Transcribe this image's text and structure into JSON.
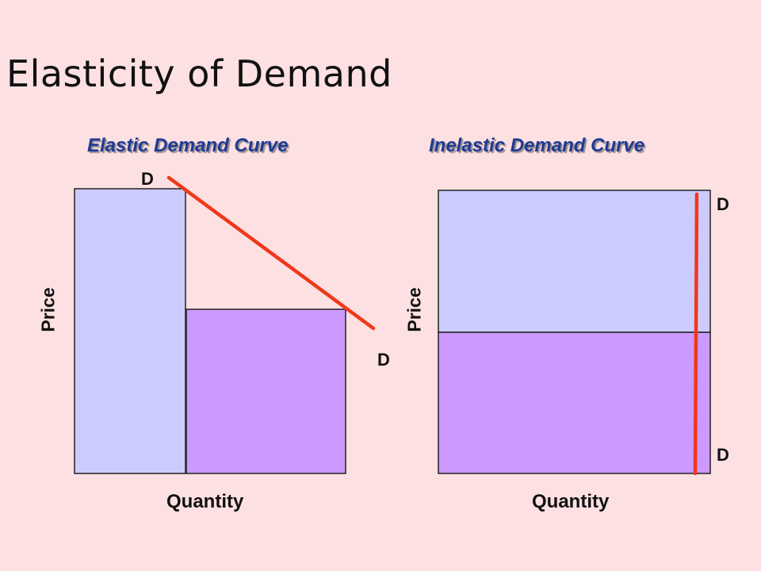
{
  "title": "Elasticity of Demand",
  "diagrams": [
    {
      "id": "elastic",
      "title": "Elastic Demand Curve",
      "x_axis_label": "Quantity",
      "y_axis_label": "Price",
      "curve_label_start": "D",
      "curve_label_end": "D",
      "curve_color": "#f0381a"
    },
    {
      "id": "inelastic",
      "title": "Inelastic Demand Curve",
      "x_axis_label": "Quantity",
      "y_axis_label": "Price",
      "curve_label_start": "D",
      "curve_label_end": "D",
      "curve_color": "#f0381a"
    }
  ],
  "colors": {
    "background": "#fde0e2",
    "revenue_area_light": "#cccbfe",
    "revenue_area_dark": "#cc99fe",
    "title_text": "#1f3a93",
    "demand_curve": "#f0381a"
  }
}
